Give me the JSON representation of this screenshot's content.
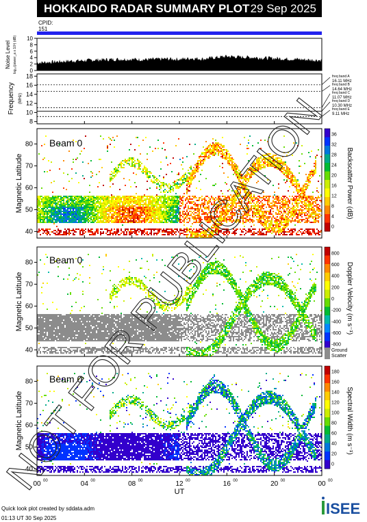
{
  "header": {
    "title": "HOKKAIDO RADAR SUMMARY PLOT",
    "date": "29 Sep 2025",
    "cpid_label": "CPID:",
    "cpid_value": "151"
  },
  "footer": {
    "credit": "Quick look plot created by sddata.adm",
    "timestamp": "01:13 UT 30 Sep 2025",
    "logo": "ISEE"
  },
  "watermark": "NOT FOR PUBLICATION",
  "colors": {
    "cpid_bar": "#2222ee",
    "ground_scatter": "#8c8c8c",
    "power_scale": [
      "#c00000",
      "#ff3300",
      "#ff8800",
      "#ffcc00",
      "#ffff00",
      "#ccee00",
      "#66dd00",
      "#00bb33",
      "#00aa88",
      "#0077dd",
      "#0033ff",
      "#3300cc"
    ],
    "velocity_scale": [
      "#3300cc",
      "#0033ff",
      "#0088ff",
      "#00bbaa",
      "#00bb33",
      "#66dd00",
      "#ccee00",
      "#ffff00",
      "#ffcc00",
      "#ff8800",
      "#ff3300",
      "#c00000"
    ],
    "width_scale": [
      "#3300cc",
      "#0033ff",
      "#0077dd",
      "#00aa88",
      "#00bb33",
      "#66dd00",
      "#ccee00",
      "#ffff00",
      "#ffcc00",
      "#ff8800",
      "#ff3300",
      "#c00000"
    ],
    "logo_green": "#2a9a3a",
    "logo_blue": "#1a4fa0"
  },
  "chart_data": [
    {
      "type": "area",
      "name": "noise",
      "ylabel": "Noise Level",
      "ysublabel": "log₁₀(power_a x 10³) (dB)",
      "ylim": [
        0,
        10
      ],
      "yticks": [
        "0",
        "2",
        "4",
        "6",
        "8",
        "10"
      ],
      "x": [
        0,
        1,
        2,
        3,
        4,
        5,
        6,
        7,
        8,
        9,
        10,
        11,
        12,
        13,
        14,
        15,
        16,
        17,
        18,
        19,
        20,
        21,
        22,
        23,
        24
      ],
      "values": [
        2.4,
        2.6,
        2.8,
        3.0,
        3.1,
        3.3,
        3.4,
        3.5,
        3.5,
        3.4,
        3.5,
        3.6,
        3.5,
        3.8,
        3.6,
        4.0,
        4.4,
        4.2,
        4.1,
        3.9,
        3.8,
        3.6,
        3.5,
        3.3,
        3.2
      ]
    },
    {
      "type": "line",
      "name": "frequency",
      "ylabel": "Frequency",
      "yunit": "(MHz)",
      "ylim": [
        7.5,
        18.5
      ],
      "yticks": [
        "8",
        "10",
        "12",
        "14",
        "16",
        "18"
      ],
      "bands": [
        {
          "name": "freq band A",
          "value": "16.11 MHz",
          "mhz": 16.11,
          "style": "dotted"
        },
        {
          "name": "freq band B",
          "value": "14.64 MHz",
          "mhz": 14.64,
          "style": "dotted"
        },
        {
          "name": "freq band C",
          "value": "11.07 MHz",
          "mhz": 11.07,
          "style": "dotted"
        },
        {
          "name": "freq band D",
          "value": "10.30 MHz",
          "mhz": 10.3,
          "style": "solid"
        },
        {
          "name": "freq band E",
          "value": "9.11 MHz",
          "mhz": 9.11,
          "style": "dotted"
        }
      ]
    },
    {
      "type": "heatmap",
      "name": "power",
      "beam_label": "Beam  0",
      "ylabel": "Magnetic Latitude",
      "ylim": [
        37,
        87
      ],
      "yticks": [
        "40",
        "50",
        "60",
        "70",
        "80"
      ],
      "colorbar_label": "Backscatter Power (dB)",
      "colorbar_ticks": [
        "0",
        "4",
        "8",
        "12",
        "16",
        "20",
        "24",
        "28",
        "32",
        "36"
      ]
    },
    {
      "type": "heatmap",
      "name": "velocity",
      "beam_label": "Beam  0",
      "ylabel": "Magnetic Latitude",
      "ylim": [
        37,
        87
      ],
      "yticks": [
        "40",
        "50",
        "60",
        "70",
        "80"
      ],
      "colorbar_label": "Doppler Velocity (m s⁻¹)",
      "colorbar_ticks": [
        "-800",
        "-600",
        "-400",
        "-200",
        "0",
        "200",
        "400",
        "600",
        "800"
      ],
      "ground_scatter_label": "Ground Scatter"
    },
    {
      "type": "heatmap",
      "name": "width",
      "beam_label": "Beam  0",
      "ylabel": "Magnetic Latitude",
      "ylim": [
        37,
        87
      ],
      "yticks": [
        "40",
        "50",
        "60",
        "70",
        "80"
      ],
      "colorbar_label": "Spectral Width (m s⁻¹)",
      "colorbar_ticks": [
        "0",
        "20",
        "40",
        "60",
        "80",
        "100",
        "120",
        "140",
        "160",
        "180"
      ]
    }
  ],
  "xaxis": {
    "label": "UT",
    "ticks": [
      "00",
      "04",
      "08",
      "12",
      "16",
      "20",
      "00"
    ],
    "tick_hours": [
      0,
      4,
      8,
      12,
      16,
      20,
      24
    ],
    "tick_suffix": "00",
    "xlim": [
      0,
      24
    ]
  }
}
